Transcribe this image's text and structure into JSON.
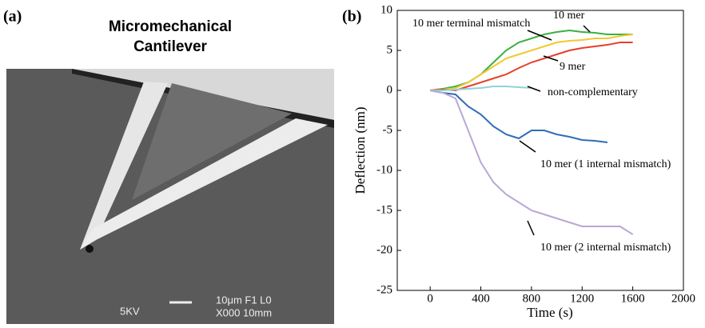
{
  "panel_a": {
    "label": "(a)",
    "title_line1": "Micromechanical",
    "title_line2": "Cantilever",
    "scale_text1": "5KV",
    "scale_text2": "10μm F1 L0",
    "scale_text3": "X000 10mm"
  },
  "chart_data": {
    "type": "line",
    "panel_label": "(b)",
    "x_label": "Time (s)",
    "y_label": "Deflection (nm)",
    "x": [
      0,
      100,
      200,
      300,
      400,
      500,
      600,
      700,
      800,
      900,
      1000,
      1100,
      1200,
      1300,
      1400,
      1500,
      1600
    ],
    "series": [
      {
        "name": "10 mer",
        "color": "#3cb043",
        "values": [
          0,
          0.2,
          0.5,
          1,
          2,
          3.5,
          5,
          6,
          6.5,
          7,
          7.3,
          7.5,
          7.3,
          7.2,
          7,
          7,
          7
        ]
      },
      {
        "name": "10 mer terminal mismatch",
        "color": "#f2c832",
        "values": [
          0,
          0.1,
          0.3,
          1,
          2,
          3,
          4,
          4.5,
          5,
          5.5,
          6,
          6.2,
          6.3,
          6.5,
          6.5,
          6.8,
          7
        ]
      },
      {
        "name": "9 mer",
        "color": "#e8402a",
        "values": [
          0,
          0.1,
          0,
          0.5,
          1,
          1.5,
          2,
          2.8,
          3.5,
          4,
          4.5,
          5,
          5.3,
          5.5,
          5.7,
          6,
          6
        ]
      },
      {
        "name": "non-complementary",
        "color": "#8fd3d8",
        "values": [
          0,
          0,
          0.1,
          0.2,
          0.3,
          0.5,
          0.5,
          0.4,
          0.3,
          null,
          null,
          null,
          null,
          null,
          null,
          null,
          null
        ]
      },
      {
        "name": "10 mer (1 internal mismatch)",
        "color": "#2f6db5",
        "values": [
          0,
          -0.3,
          -0.5,
          -2,
          -3,
          -4.5,
          -5.5,
          -6,
          -5,
          -5,
          -5.5,
          -5.8,
          -6.2,
          -6.3,
          -6.5,
          null,
          null
        ]
      },
      {
        "name": "10 mer (2 internal mismatch)",
        "color": "#b9a7d6",
        "values": [
          0,
          -0.3,
          -1,
          -5,
          -9,
          -11.5,
          -13,
          -14,
          -15,
          -15.5,
          -16,
          -16.5,
          -17,
          -17,
          -17,
          -17,
          -18
        ]
      }
    ],
    "xlim": [
      -260,
      2000
    ],
    "xticks": [
      0,
      400,
      800,
      1200,
      1600,
      2000
    ],
    "ylim": [
      -25,
      10
    ],
    "yticks": [
      -25,
      -20,
      -15,
      -10,
      -5,
      0,
      5,
      10
    ]
  }
}
